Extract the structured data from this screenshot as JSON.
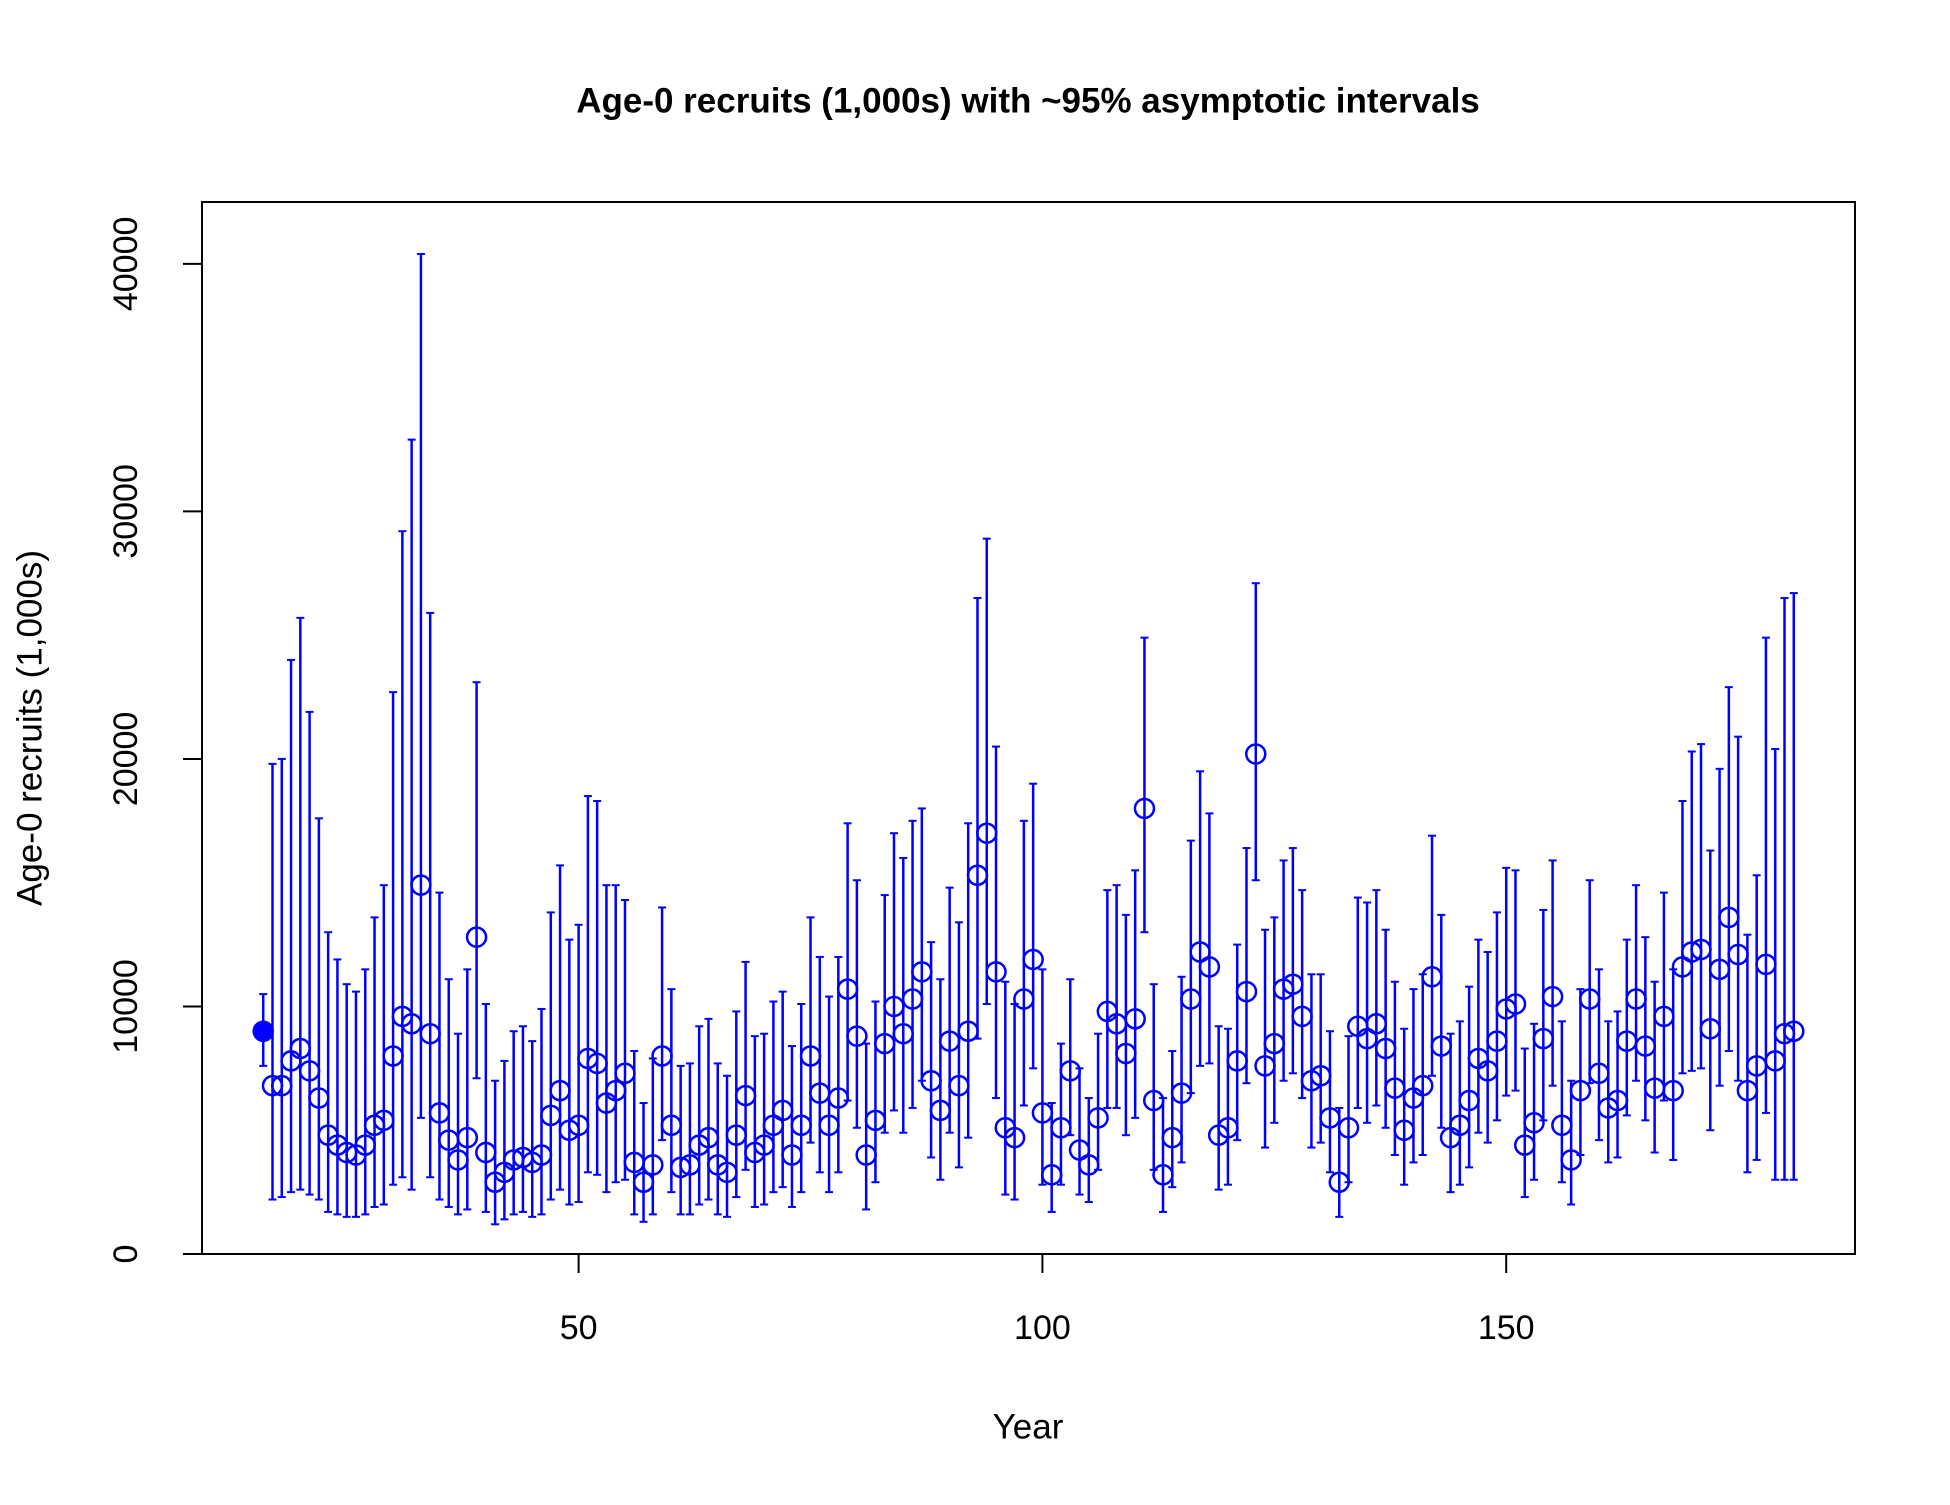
{
  "chart_data": {
    "type": "scatter",
    "title": "Age-0 recruits (1,000s) with ~95% asymptotic intervals",
    "xlabel": "Year",
    "ylabel": "Age-0 recruits (1,000s)",
    "xlim": [
      9.4,
      187.6
    ],
    "ylim": [
      0,
      42500
    ],
    "xticks": [
      50,
      100,
      150
    ],
    "yticks": [
      0,
      10000,
      20000,
      30000,
      40000
    ],
    "grid": false,
    "series": [
      {
        "color": "#0000ff",
        "marker": "filled",
        "x": [
          16
        ],
        "values": [
          9000
        ],
        "lower": [
          7600
        ],
        "upper": [
          10500
        ]
      },
      {
        "color": "#0000ff",
        "marker": "open",
        "x": [
          17,
          18,
          19,
          20,
          21,
          22,
          23,
          24,
          25,
          26,
          27,
          28,
          29,
          30,
          31,
          32,
          33,
          34,
          35,
          36,
          37,
          38,
          39,
          40,
          41,
          42,
          43,
          44,
          45,
          46,
          47,
          48,
          49,
          50,
          51,
          52,
          53,
          54,
          55,
          56,
          57,
          58,
          59,
          60,
          61,
          62,
          63,
          64,
          65,
          66,
          67,
          68,
          69,
          70,
          71,
          72,
          73,
          74,
          75,
          76,
          77,
          78,
          79,
          80,
          81,
          82,
          83,
          84,
          85,
          86,
          87,
          88,
          89,
          90,
          91,
          92,
          93,
          94,
          95,
          96,
          97,
          98,
          99,
          100,
          101,
          102,
          103,
          104,
          105,
          106,
          107,
          108,
          109,
          110,
          111,
          112,
          113,
          114,
          115,
          116,
          117,
          118,
          119,
          120,
          121,
          122,
          123,
          124,
          125,
          126,
          127,
          128,
          129,
          130,
          131,
          132,
          133,
          134,
          135,
          136,
          137,
          138,
          139,
          140,
          141,
          142,
          143,
          144,
          145,
          146,
          147,
          148,
          149,
          150,
          151,
          152,
          153,
          154,
          155,
          156,
          157,
          158,
          159,
          160,
          161,
          162,
          163,
          164,
          165,
          166,
          167,
          168,
          169,
          170,
          171,
          172,
          173,
          174,
          175,
          176,
          177,
          178,
          179,
          180,
          181
        ],
        "values": [
          6800,
          6800,
          7800,
          8300,
          7400,
          6300,
          4800,
          4400,
          4100,
          4000,
          4400,
          5200,
          5400,
          8000,
          9600,
          9300,
          14900,
          8900,
          5700,
          4600,
          3800,
          4700,
          12800,
          4100,
          2900,
          3300,
          3800,
          3900,
          3700,
          4000,
          5600,
          6600,
          5000,
          5200,
          7900,
          7700,
          6100,
          6600,
          7300,
          3700,
          2900,
          3600,
          8000,
          5200,
          3500,
          3600,
          4400,
          4700,
          3600,
          3300,
          4800,
          6400,
          4100,
          4400,
          5200,
          5800,
          4000,
          5200,
          8000,
          6500,
          5200,
          6300,
          10700,
          8800,
          4000,
          5400,
          8500,
          10000,
          8900,
          10300,
          11400,
          7000,
          5800,
          8600,
          6800,
          9000,
          15300,
          17000,
          11400,
          5100,
          4700,
          10300,
          11900,
          5700,
          3200,
          5100,
          7400,
          4200,
          3600,
          5500,
          9800,
          9300,
          8100,
          9500,
          18000,
          6200,
          3200,
          4700,
          6500,
          10300,
          12200,
          11600,
          4800,
          5100,
          7800,
          10600,
          20200,
          7600,
          8500,
          10700,
          10900,
          9600,
          7000,
          7200,
          5500,
          2900,
          5100,
          9200,
          8700,
          9300,
          8300,
          6700,
          5000,
          6300,
          6800,
          11200,
          8400,
          4700,
          5200,
          6200,
          7900,
          7400,
          8600,
          9900,
          10100,
          4400,
          5300,
          8700,
          10400,
          5200,
          3800,
          6600,
          10300,
          7300,
          5900,
          6200,
          8600,
          10300,
          8400,
          6700,
          9600,
          6600,
          11600,
          12200,
          12300,
          9100,
          11500,
          13600,
          12100,
          6600,
          7600,
          11700,
          7800,
          8900,
          9000
        ],
        "lower": [
          2200,
          2300,
          2500,
          2600,
          2400,
          2200,
          1700,
          1600,
          1500,
          1500,
          1600,
          1900,
          2000,
          2800,
          3100,
          2600,
          5500,
          3100,
          2200,
          1900,
          1600,
          1800,
          7100,
          1700,
          1200,
          1400,
          1600,
          1700,
          1500,
          1600,
          2200,
          2600,
          2000,
          2100,
          3300,
          3200,
          2500,
          2900,
          3000,
          1600,
          1300,
          1600,
          4600,
          2500,
          1600,
          1600,
          2000,
          2200,
          1600,
          1500,
          2300,
          3400,
          1900,
          2000,
          2500,
          2700,
          1900,
          2500,
          4500,
          3300,
          2500,
          3300,
          6200,
          5100,
          1800,
          2900,
          4900,
          5800,
          4900,
          5900,
          7000,
          3900,
          3000,
          4900,
          3500,
          4700,
          8700,
          10100,
          6300,
          2400,
          2200,
          6000,
          7500,
          2800,
          1700,
          2800,
          4800,
          2400,
          2100,
          3400,
          5900,
          5900,
          4800,
          5500,
          13000,
          3400,
          1700,
          2700,
          3700,
          6500,
          7600,
          7700,
          2600,
          2800,
          4600,
          6900,
          15100,
          4300,
          5300,
          7000,
          7300,
          6300,
          4300,
          4500,
          3300,
          1500,
          2900,
          5900,
          5300,
          6000,
          5100,
          4000,
          2800,
          3700,
          4000,
          7200,
          5100,
          2500,
          2800,
          3500,
          4900,
          4500,
          5400,
          6400,
          6600,
          2300,
          3000,
          5400,
          6800,
          2900,
          2000,
          4000,
          6900,
          4600,
          3700,
          3900,
          5600,
          7000,
          5400,
          4100,
          6200,
          3800,
          7300,
          7400,
          7500,
          5000,
          6800,
          8200,
          7000,
          3300,
          3800,
          5700,
          3000,
          3000,
          3000
        ],
        "upper": [
          19800,
          20000,
          24000,
          25700,
          21900,
          17600,
          13000,
          11900,
          10900,
          10600,
          11500,
          13600,
          14900,
          22700,
          29200,
          32900,
          40400,
          25900,
          14600,
          11100,
          8900,
          11500,
          23100,
          10100,
          7000,
          7800,
          9000,
          9200,
          8600,
          9900,
          13800,
          15700,
          12700,
          13300,
          18500,
          18300,
          14900,
          14900,
          14300,
          8200,
          6100,
          7900,
          14000,
          10700,
          7600,
          7700,
          9200,
          9500,
          7700,
          7200,
          9800,
          11800,
          8800,
          8900,
          10200,
          10600,
          8400,
          10100,
          13600,
          12000,
          10400,
          12000,
          17400,
          15100,
          8500,
          10200,
          14500,
          17000,
          16000,
          17500,
          18000,
          12600,
          11100,
          14800,
          13400,
          17400,
          26500,
          28900,
          20500,
          11000,
          10100,
          17500,
          19000,
          11500,
          6100,
          8500,
          11100,
          7500,
          6300,
          8900,
          14700,
          14900,
          13700,
          15500,
          24900,
          10900,
          6300,
          8200,
          11200,
          16700,
          19500,
          17800,
          9200,
          9100,
          12500,
          16400,
          27100,
          13100,
          13600,
          15900,
          16400,
          14700,
          11300,
          11300,
          9000,
          5900,
          8800,
          14400,
          14200,
          14700,
          13100,
          11000,
          9100,
          10700,
          11300,
          16900,
          13700,
          8900,
          9400,
          10800,
          12700,
          12200,
          13800,
          15600,
          15500,
          8300,
          9300,
          13900,
          15900,
          9400,
          7000,
          10700,
          15100,
          11500,
          9400,
          9800,
          12700,
          14900,
          12800,
          11000,
          14600,
          11500,
          18300,
          20300,
          20600,
          16300,
          19600,
          22900,
          20900,
          12900,
          15300,
          24900,
          20400,
          26500,
          26700
        ]
      }
    ]
  }
}
